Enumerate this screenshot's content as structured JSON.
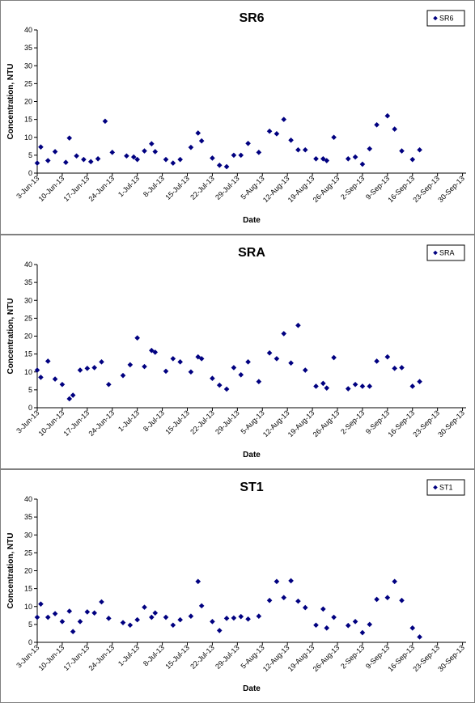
{
  "colors": {
    "marker": "#000080",
    "axis": "#000000",
    "frame": "#808080"
  },
  "chart_data": [
    {
      "type": "scatter",
      "title": "SR6",
      "xlabel": "Date",
      "ylabel": "Concentration, NTU",
      "ylim": [
        0,
        40
      ],
      "yticks": [
        0,
        5,
        10,
        15,
        20,
        25,
        30,
        35,
        40
      ],
      "xlim": [
        "2013-06-03",
        "2013-10-01"
      ],
      "xticks": [
        {
          "date": "2013-06-03",
          "label": "3-Jun-13"
        },
        {
          "date": "2013-06-10",
          "label": "10-Jun-13"
        },
        {
          "date": "2013-06-17",
          "label": "17-Jun-13"
        },
        {
          "date": "2013-06-24",
          "label": "24-Jun-13"
        },
        {
          "date": "2013-07-01",
          "label": "1-Jul-13"
        },
        {
          "date": "2013-07-08",
          "label": "8-Jul-13"
        },
        {
          "date": "2013-07-15",
          "label": "15-Jul-13"
        },
        {
          "date": "2013-07-22",
          "label": "22-Jul-13"
        },
        {
          "date": "2013-07-29",
          "label": "29-Jul-13"
        },
        {
          "date": "2013-08-05",
          "label": "5-Aug-13"
        },
        {
          "date": "2013-08-12",
          "label": "12-Aug-13"
        },
        {
          "date": "2013-08-19",
          "label": "19-Aug-13"
        },
        {
          "date": "2013-08-26",
          "label": "26-Aug-13"
        },
        {
          "date": "2013-09-02",
          "label": "2-Sep-13"
        },
        {
          "date": "2013-09-09",
          "label": "9-Sep-13"
        },
        {
          "date": "2013-09-16",
          "label": "16-Sep-13"
        },
        {
          "date": "2013-09-23",
          "label": "23-Sep-13"
        },
        {
          "date": "2013-09-30",
          "label": "30-Sep-13"
        }
      ],
      "legend": "top-right",
      "series": [
        {
          "name": "SR6",
          "points": [
            {
              "x": "2013-06-03",
              "y": 2.8
            },
            {
              "x": "2013-06-04",
              "y": 7.3
            },
            {
              "x": "2013-06-06",
              "y": 3.5
            },
            {
              "x": "2013-06-08",
              "y": 6.0
            },
            {
              "x": "2013-06-11",
              "y": 3.0
            },
            {
              "x": "2013-06-12",
              "y": 9.8
            },
            {
              "x": "2013-06-14",
              "y": 4.8
            },
            {
              "x": "2013-06-16",
              "y": 3.8
            },
            {
              "x": "2013-06-18",
              "y": 3.2
            },
            {
              "x": "2013-06-20",
              "y": 4.0
            },
            {
              "x": "2013-06-22",
              "y": 14.5
            },
            {
              "x": "2013-06-24",
              "y": 5.8
            },
            {
              "x": "2013-06-28",
              "y": 4.8
            },
            {
              "x": "2013-06-30",
              "y": 4.5
            },
            {
              "x": "2013-07-01",
              "y": 3.8
            },
            {
              "x": "2013-07-03",
              "y": 6.2
            },
            {
              "x": "2013-07-05",
              "y": 8.2
            },
            {
              "x": "2013-07-06",
              "y": 6.0
            },
            {
              "x": "2013-07-09",
              "y": 3.8
            },
            {
              "x": "2013-07-11",
              "y": 2.8
            },
            {
              "x": "2013-07-13",
              "y": 3.8
            },
            {
              "x": "2013-07-16",
              "y": 7.2
            },
            {
              "x": "2013-07-18",
              "y": 11.2
            },
            {
              "x": "2013-07-19",
              "y": 9.0
            },
            {
              "x": "2013-07-22",
              "y": 4.2
            },
            {
              "x": "2013-07-24",
              "y": 2.2
            },
            {
              "x": "2013-07-26",
              "y": 1.8
            },
            {
              "x": "2013-07-28",
              "y": 5.0
            },
            {
              "x": "2013-07-30",
              "y": 5.0
            },
            {
              "x": "2013-08-01",
              "y": 8.3
            },
            {
              "x": "2013-08-04",
              "y": 5.8
            },
            {
              "x": "2013-08-07",
              "y": 11.7
            },
            {
              "x": "2013-08-09",
              "y": 11.0
            },
            {
              "x": "2013-08-11",
              "y": 15.0
            },
            {
              "x": "2013-08-13",
              "y": 9.2
            },
            {
              "x": "2013-08-15",
              "y": 6.5
            },
            {
              "x": "2013-08-17",
              "y": 6.5
            },
            {
              "x": "2013-08-20",
              "y": 4.0
            },
            {
              "x": "2013-08-22",
              "y": 4.0
            },
            {
              "x": "2013-08-23",
              "y": 3.5
            },
            {
              "x": "2013-08-25",
              "y": 10.0
            },
            {
              "x": "2013-08-29",
              "y": 4.0
            },
            {
              "x": "2013-08-31",
              "y": 4.5
            },
            {
              "x": "2013-09-02",
              "y": 2.5
            },
            {
              "x": "2013-09-04",
              "y": 6.8
            },
            {
              "x": "2013-09-06",
              "y": 13.5
            },
            {
              "x": "2013-09-09",
              "y": 16.0
            },
            {
              "x": "2013-09-11",
              "y": 12.3
            },
            {
              "x": "2013-09-13",
              "y": 6.2
            },
            {
              "x": "2013-09-16",
              "y": 3.8
            },
            {
              "x": "2013-09-18",
              "y": 6.5
            }
          ]
        }
      ]
    },
    {
      "type": "scatter",
      "title": "SRA",
      "xlabel": "Date",
      "ylabel": "Concentration, NTU",
      "ylim": [
        0,
        40
      ],
      "yticks": [
        0,
        5,
        10,
        15,
        20,
        25,
        30,
        35,
        40
      ],
      "xlim": [
        "2013-06-03",
        "2013-10-01"
      ],
      "xticks": [
        {
          "date": "2013-06-03",
          "label": "3-Jun-13"
        },
        {
          "date": "2013-06-10",
          "label": "10-Jun-13"
        },
        {
          "date": "2013-06-17",
          "label": "17-Jun-13"
        },
        {
          "date": "2013-06-24",
          "label": "24-Jun-13"
        },
        {
          "date": "2013-07-01",
          "label": "1-Jul-13"
        },
        {
          "date": "2013-07-08",
          "label": "8-Jul-13"
        },
        {
          "date": "2013-07-15",
          "label": "15-Jul-13"
        },
        {
          "date": "2013-07-22",
          "label": "22-Jul-13"
        },
        {
          "date": "2013-07-29",
          "label": "29-Jul-13"
        },
        {
          "date": "2013-08-05",
          "label": "5-Aug-13"
        },
        {
          "date": "2013-08-12",
          "label": "12-Aug-13"
        },
        {
          "date": "2013-08-19",
          "label": "19-Aug-13"
        },
        {
          "date": "2013-08-26",
          "label": "26-Aug-13"
        },
        {
          "date": "2013-09-02",
          "label": "2-Sep-13"
        },
        {
          "date": "2013-09-09",
          "label": "9-Sep-13"
        },
        {
          "date": "2013-09-16",
          "label": "16-Sep-13"
        },
        {
          "date": "2013-09-23",
          "label": "23-Sep-13"
        },
        {
          "date": "2013-09-30",
          "label": "30-Sep-13"
        }
      ],
      "legend": "top-right",
      "series": [
        {
          "name": "SRA",
          "points": [
            {
              "x": "2013-06-03",
              "y": 10.5
            },
            {
              "x": "2013-06-04",
              "y": 8.5
            },
            {
              "x": "2013-06-06",
              "y": 13.0
            },
            {
              "x": "2013-06-08",
              "y": 8.0
            },
            {
              "x": "2013-06-10",
              "y": 6.5
            },
            {
              "x": "2013-06-12",
              "y": 2.5
            },
            {
              "x": "2013-06-13",
              "y": 3.5
            },
            {
              "x": "2013-06-15",
              "y": 10.5
            },
            {
              "x": "2013-06-17",
              "y": 11.0
            },
            {
              "x": "2013-06-19",
              "y": 11.2
            },
            {
              "x": "2013-06-21",
              "y": 12.8
            },
            {
              "x": "2013-06-23",
              "y": 6.5
            },
            {
              "x": "2013-06-27",
              "y": 9.0
            },
            {
              "x": "2013-06-29",
              "y": 12.0
            },
            {
              "x": "2013-07-01",
              "y": 19.5
            },
            {
              "x": "2013-07-03",
              "y": 11.5
            },
            {
              "x": "2013-07-05",
              "y": 16.0
            },
            {
              "x": "2013-07-06",
              "y": 15.5
            },
            {
              "x": "2013-07-09",
              "y": 10.2
            },
            {
              "x": "2013-07-11",
              "y": 13.7
            },
            {
              "x": "2013-07-13",
              "y": 12.8
            },
            {
              "x": "2013-07-16",
              "y": 10.0
            },
            {
              "x": "2013-07-18",
              "y": 14.2
            },
            {
              "x": "2013-07-19",
              "y": 13.7
            },
            {
              "x": "2013-07-22",
              "y": 8.2
            },
            {
              "x": "2013-07-24",
              "y": 6.3
            },
            {
              "x": "2013-07-26",
              "y": 5.2
            },
            {
              "x": "2013-07-28",
              "y": 11.2
            },
            {
              "x": "2013-07-30",
              "y": 9.2
            },
            {
              "x": "2013-08-01",
              "y": 12.8
            },
            {
              "x": "2013-08-04",
              "y": 7.3
            },
            {
              "x": "2013-08-07",
              "y": 15.3
            },
            {
              "x": "2013-08-09",
              "y": 13.7
            },
            {
              "x": "2013-08-11",
              "y": 20.7
            },
            {
              "x": "2013-08-13",
              "y": 12.5
            },
            {
              "x": "2013-08-15",
              "y": 23.0
            },
            {
              "x": "2013-08-17",
              "y": 10.5
            },
            {
              "x": "2013-08-20",
              "y": 6.0
            },
            {
              "x": "2013-08-22",
              "y": 6.8
            },
            {
              "x": "2013-08-23",
              "y": 5.5
            },
            {
              "x": "2013-08-25",
              "y": 14.0
            },
            {
              "x": "2013-08-29",
              "y": 5.3
            },
            {
              "x": "2013-08-31",
              "y": 6.5
            },
            {
              "x": "2013-09-02",
              "y": 6.0
            },
            {
              "x": "2013-09-04",
              "y": 6.0
            },
            {
              "x": "2013-09-06",
              "y": 13.0
            },
            {
              "x": "2013-09-09",
              "y": 14.2
            },
            {
              "x": "2013-09-11",
              "y": 11.0
            },
            {
              "x": "2013-09-13",
              "y": 11.2
            },
            {
              "x": "2013-09-16",
              "y": 6.0
            },
            {
              "x": "2013-09-18",
              "y": 7.3
            }
          ]
        }
      ]
    },
    {
      "type": "scatter",
      "title": "ST1",
      "xlabel": "Date",
      "ylabel": "Concentration, NTU",
      "ylim": [
        0,
        40
      ],
      "yticks": [
        0,
        5,
        10,
        15,
        20,
        25,
        30,
        35,
        40
      ],
      "xlim": [
        "2013-06-03",
        "2013-10-01"
      ],
      "xticks": [
        {
          "date": "2013-06-03",
          "label": "3-Jun-13"
        },
        {
          "date": "2013-06-10",
          "label": "10-Jun-13"
        },
        {
          "date": "2013-06-17",
          "label": "17-Jun-13"
        },
        {
          "date": "2013-06-24",
          "label": "24-Jun-13"
        },
        {
          "date": "2013-07-01",
          "label": "1-Jul-13"
        },
        {
          "date": "2013-07-08",
          "label": "8-Jul-13"
        },
        {
          "date": "2013-07-15",
          "label": "15-Jul-13"
        },
        {
          "date": "2013-07-22",
          "label": "22-Jul-13"
        },
        {
          "date": "2013-07-29",
          "label": "29-Jul-13"
        },
        {
          "date": "2013-08-05",
          "label": "5-Aug-13"
        },
        {
          "date": "2013-08-12",
          "label": "12-Aug-13"
        },
        {
          "date": "2013-08-19",
          "label": "19-Aug-13"
        },
        {
          "date": "2013-08-26",
          "label": "26-Aug-13"
        },
        {
          "date": "2013-09-02",
          "label": "2-Sep-13"
        },
        {
          "date": "2013-09-09",
          "label": "9-Sep-13"
        },
        {
          "date": "2013-09-16",
          "label": "16-Sep-13"
        },
        {
          "date": "2013-09-23",
          "label": "23-Sep-13"
        },
        {
          "date": "2013-09-30",
          "label": "30-Sep-13"
        }
      ],
      "legend": "top-right",
      "series": [
        {
          "name": "ST1",
          "points": [
            {
              "x": "2013-06-03",
              "y": 7.0
            },
            {
              "x": "2013-06-04",
              "y": 10.7
            },
            {
              "x": "2013-06-06",
              "y": 7.0
            },
            {
              "x": "2013-06-08",
              "y": 8.0
            },
            {
              "x": "2013-06-10",
              "y": 5.8
            },
            {
              "x": "2013-06-12",
              "y": 8.7
            },
            {
              "x": "2013-06-13",
              "y": 3.0
            },
            {
              "x": "2013-06-15",
              "y": 5.8
            },
            {
              "x": "2013-06-17",
              "y": 8.5
            },
            {
              "x": "2013-06-19",
              "y": 8.2
            },
            {
              "x": "2013-06-21",
              "y": 11.3
            },
            {
              "x": "2013-06-23",
              "y": 6.7
            },
            {
              "x": "2013-06-27",
              "y": 5.5
            },
            {
              "x": "2013-06-29",
              "y": 4.8
            },
            {
              "x": "2013-07-01",
              "y": 6.3
            },
            {
              "x": "2013-07-03",
              "y": 9.8
            },
            {
              "x": "2013-07-05",
              "y": 7.0
            },
            {
              "x": "2013-07-06",
              "y": 8.2
            },
            {
              "x": "2013-07-09",
              "y": 7.0
            },
            {
              "x": "2013-07-11",
              "y": 4.8
            },
            {
              "x": "2013-07-13",
              "y": 6.3
            },
            {
              "x": "2013-07-16",
              "y": 7.3
            },
            {
              "x": "2013-07-18",
              "y": 17.0
            },
            {
              "x": "2013-07-19",
              "y": 10.2
            },
            {
              "x": "2013-07-22",
              "y": 5.8
            },
            {
              "x": "2013-07-24",
              "y": 3.3
            },
            {
              "x": "2013-07-26",
              "y": 6.7
            },
            {
              "x": "2013-07-28",
              "y": 6.8
            },
            {
              "x": "2013-07-30",
              "y": 7.2
            },
            {
              "x": "2013-08-01",
              "y": 6.5
            },
            {
              "x": "2013-08-04",
              "y": 7.3
            },
            {
              "x": "2013-08-07",
              "y": 11.7
            },
            {
              "x": "2013-08-09",
              "y": 17.0
            },
            {
              "x": "2013-08-11",
              "y": 12.5
            },
            {
              "x": "2013-08-13",
              "y": 17.2
            },
            {
              "x": "2013-08-15",
              "y": 11.5
            },
            {
              "x": "2013-08-17",
              "y": 9.7
            },
            {
              "x": "2013-08-20",
              "y": 4.8
            },
            {
              "x": "2013-08-22",
              "y": 9.3
            },
            {
              "x": "2013-08-23",
              "y": 4.0
            },
            {
              "x": "2013-08-25",
              "y": 7.0
            },
            {
              "x": "2013-08-29",
              "y": 4.7
            },
            {
              "x": "2013-08-31",
              "y": 5.8
            },
            {
              "x": "2013-09-02",
              "y": 2.7
            },
            {
              "x": "2013-09-04",
              "y": 5.0
            },
            {
              "x": "2013-09-06",
              "y": 12.0
            },
            {
              "x": "2013-09-09",
              "y": 12.5
            },
            {
              "x": "2013-09-11",
              "y": 17.0
            },
            {
              "x": "2013-09-13",
              "y": 11.7
            },
            {
              "x": "2013-09-16",
              "y": 4.0
            },
            {
              "x": "2013-09-18",
              "y": 1.5
            }
          ]
        }
      ]
    }
  ]
}
